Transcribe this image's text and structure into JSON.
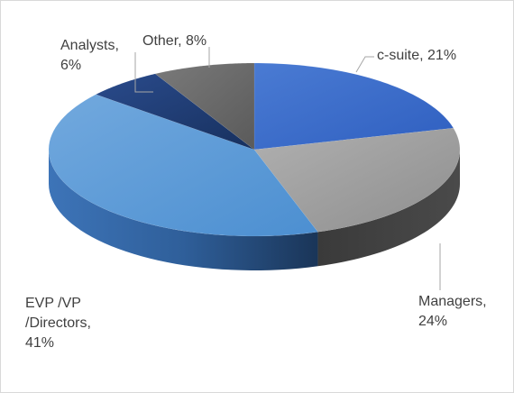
{
  "chart_data": {
    "type": "pie",
    "style": "3d",
    "categories": [
      "c-suite",
      "Managers",
      "EVP /VP /Directors",
      "Analysts",
      "Other"
    ],
    "values": [
      21,
      24,
      41,
      6,
      8
    ],
    "colors": [
      "#3d6fcc",
      "#9e9e9e",
      "#5b9bd5",
      "#1f3a73",
      "#6b6b6b"
    ],
    "labels": [
      {
        "lines": [
          "c-suite, 21%"
        ]
      },
      {
        "lines": [
          "Managers,",
          "24%"
        ]
      },
      {
        "lines": [
          "EVP /VP",
          "/Directors,",
          "41%"
        ]
      },
      {
        "lines": [
          "Analysts,",
          "6%"
        ]
      },
      {
        "lines": [
          "Other, 8%"
        ]
      }
    ],
    "legend": "none"
  }
}
